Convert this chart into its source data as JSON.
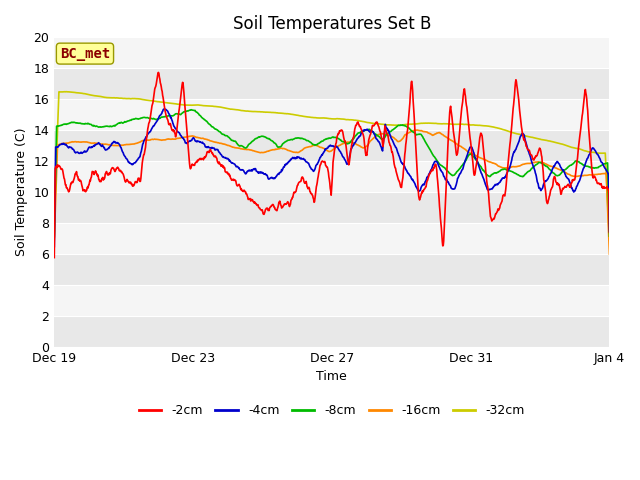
{
  "title": "Soil Temperatures Set B",
  "xlabel": "Time",
  "ylabel": "Soil Temperature (C)",
  "ylim": [
    0,
    20
  ],
  "yticks": [
    0,
    2,
    4,
    6,
    8,
    10,
    12,
    14,
    16,
    18,
    20
  ],
  "xlim_start": 0,
  "xlim_end": 16,
  "xtick_positions": [
    0,
    4,
    8,
    12,
    16
  ],
  "xtick_labels": [
    "Dec 19",
    "Dec 23",
    "Dec 27",
    "Dec 31",
    "Jan 4"
  ],
  "plot_bg_color": "#e8e8e8",
  "band_color_light": "#f0f0f0",
  "band_color_dark": "#e0e0e0",
  "grid_color": "#ffffff",
  "annotation_text": "BC_met",
  "annotation_bg": "#ffff99",
  "annotation_fg": "#8b0000",
  "series_colors": {
    "-2cm": "#ff0000",
    "-4cm": "#0000cc",
    "-8cm": "#00bb00",
    "-16cm": "#ff8800",
    "-32cm": "#cccc00"
  },
  "legend_labels": [
    "-2cm",
    "-4cm",
    "-8cm",
    "-16cm",
    "-32cm"
  ],
  "title_fontsize": 12,
  "axis_label_fontsize": 9,
  "tick_fontsize": 9,
  "legend_fontsize": 9
}
